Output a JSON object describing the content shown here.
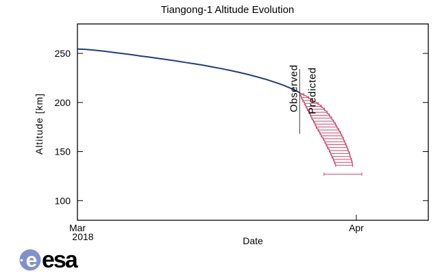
{
  "branding": {
    "wordmark": "esa",
    "symbol_letter": "e",
    "symbol_color": "#8191ce",
    "wordmark_color": "#2a3f9e"
  },
  "chart_data": {
    "type": "line",
    "title": "Tiangong-1 Altitude Evolution",
    "xlabel": "Date",
    "ylabel": "Altitude [km]",
    "x_unit": "days since 1 Mar 2018",
    "xlim": [
      0,
      39
    ],
    "ylim": [
      80,
      280
    ],
    "yticks": [
      100,
      150,
      200,
      250
    ],
    "xticks": [
      {
        "x": 0,
        "label": "Mar",
        "sublabel": "2018"
      },
      {
        "x": 31,
        "label": "Apr"
      }
    ],
    "grid": false,
    "legend": "none",
    "annotations": {
      "observed_label": "Observed",
      "predicted_label": "Predicted",
      "divider": {
        "x": 24.7,
        "alt_from": 168,
        "alt_to": 234,
        "color": "#3d3d3d"
      }
    },
    "series": [
      {
        "name": "Observed",
        "type": "line",
        "color": "#1f3d7d",
        "width": 2,
        "points_day_alt": [
          [
            0,
            254.5
          ],
          [
            1,
            254
          ],
          [
            2,
            253.2
          ],
          [
            3,
            252.2
          ],
          [
            4,
            251
          ],
          [
            5,
            249.8
          ],
          [
            6,
            248.7
          ],
          [
            7,
            247.3
          ],
          [
            8,
            246.2
          ],
          [
            9,
            244.9
          ],
          [
            10,
            243.6
          ],
          [
            11,
            242.3
          ],
          [
            12,
            240.8
          ],
          [
            13,
            239.4
          ],
          [
            14,
            237.9
          ],
          [
            15,
            236.2
          ],
          [
            16,
            234.5
          ],
          [
            17,
            232.6
          ],
          [
            18,
            230.6
          ],
          [
            19,
            228.4
          ],
          [
            20,
            226
          ],
          [
            21,
            223.4
          ],
          [
            22,
            220.5
          ],
          [
            23,
            217.2
          ],
          [
            24,
            213.3
          ],
          [
            24.7,
            210
          ]
        ]
      },
      {
        "name": "Predicted",
        "type": "xerrorbar_band",
        "color": "#c8496b",
        "band_tip_day_alt": [
          24.7,
          210
        ],
        "bars_alt_daylo_dayhi": [
          [
            208,
            24.75,
            25.15
          ],
          [
            205,
            24.9,
            25.7
          ],
          [
            202,
            25.05,
            26.15
          ],
          [
            199,
            25.25,
            26.75
          ],
          [
            196,
            25.4,
            27.1
          ],
          [
            193,
            25.55,
            27.45
          ],
          [
            190,
            25.75,
            27.75
          ],
          [
            187,
            25.9,
            28.0
          ],
          [
            184,
            26.05,
            28.25
          ],
          [
            181,
            26.23,
            28.47
          ],
          [
            178,
            26.42,
            28.68
          ],
          [
            175,
            26.55,
            28.85
          ],
          [
            172,
            26.75,
            29.05
          ],
          [
            169,
            26.95,
            29.25
          ],
          [
            166,
            27.1,
            29.4
          ],
          [
            163,
            27.33,
            29.57
          ],
          [
            160,
            27.5,
            29.7
          ],
          [
            157,
            27.65,
            29.85
          ],
          [
            154,
            27.82,
            29.98
          ],
          [
            151,
            28.0,
            30.1
          ],
          [
            148,
            28.15,
            30.25
          ],
          [
            145,
            28.28,
            30.32
          ],
          [
            142,
            28.45,
            30.45
          ],
          [
            139,
            28.57,
            30.53
          ],
          [
            136,
            28.7,
            30.6
          ]
        ],
        "reentry_window_bar_alt_daylo_dayhi": [
          127,
          27.4,
          31.6
        ]
      }
    ]
  }
}
